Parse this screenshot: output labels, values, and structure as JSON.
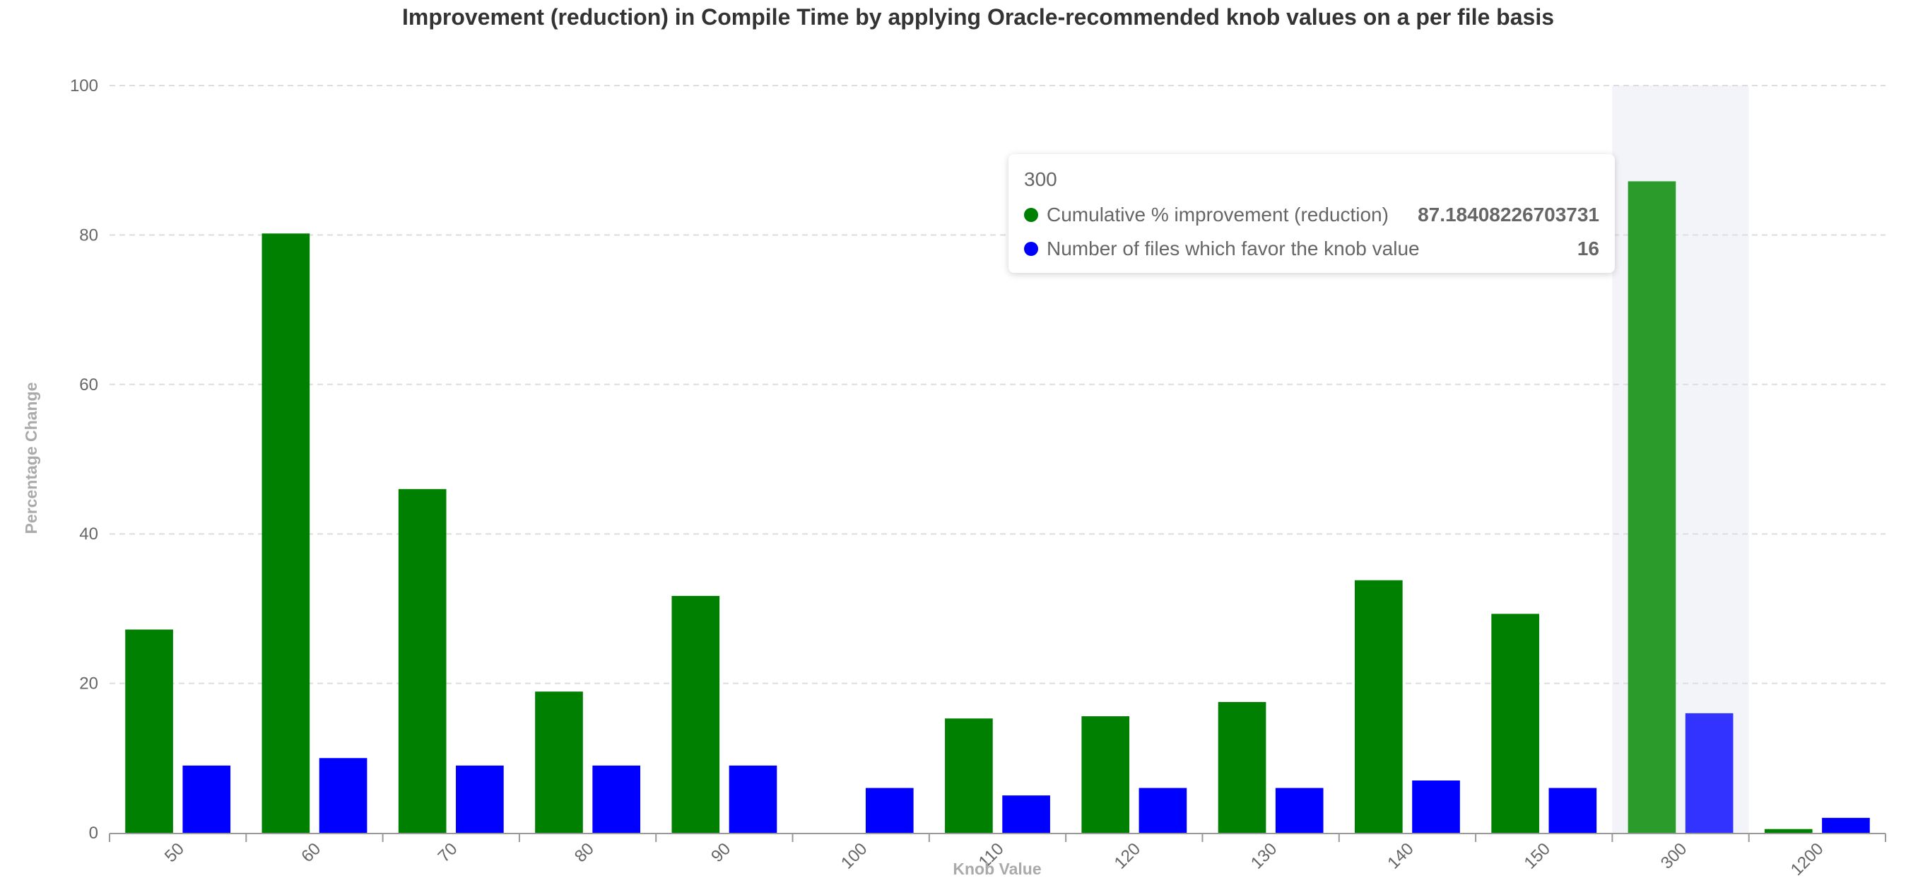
{
  "chart_data": {
    "type": "bar",
    "title": "Improvement (reduction) in Compile Time by applying Oracle-recommended knob values on a per file basis",
    "xlabel": "Knob Value",
    "ylabel": "Percentage Change",
    "categories": [
      "50",
      "60",
      "70",
      "80",
      "90",
      "100",
      "110",
      "120",
      "130",
      "140",
      "150",
      "300",
      "1200"
    ],
    "series": [
      {
        "name": "Cumulative % improvement (reduction)",
        "color": "#008000",
        "values": [
          27.2,
          80.2,
          46.0,
          18.9,
          31.7,
          0,
          15.3,
          15.6,
          17.5,
          33.8,
          29.3,
          87.18408226703731,
          0.5
        ]
      },
      {
        "name": "Number of files which favor the knob value",
        "color": "#0000ff",
        "values": [
          9,
          10,
          9,
          9,
          9,
          6,
          5,
          6,
          6,
          7,
          6,
          16,
          2
        ]
      }
    ],
    "ylim": [
      0,
      100
    ],
    "yticks": [
      0,
      20,
      40,
      60,
      80,
      100
    ],
    "grid": true,
    "highlighted_category": "300"
  },
  "tooltip": {
    "header": "300",
    "rows": [
      {
        "name": "Cumulative % improvement (reduction)",
        "value": "87.18408226703731",
        "color": "#008000"
      },
      {
        "name": "Number of files which favor the knob value",
        "value": "16",
        "color": "#0000ff"
      }
    ]
  }
}
